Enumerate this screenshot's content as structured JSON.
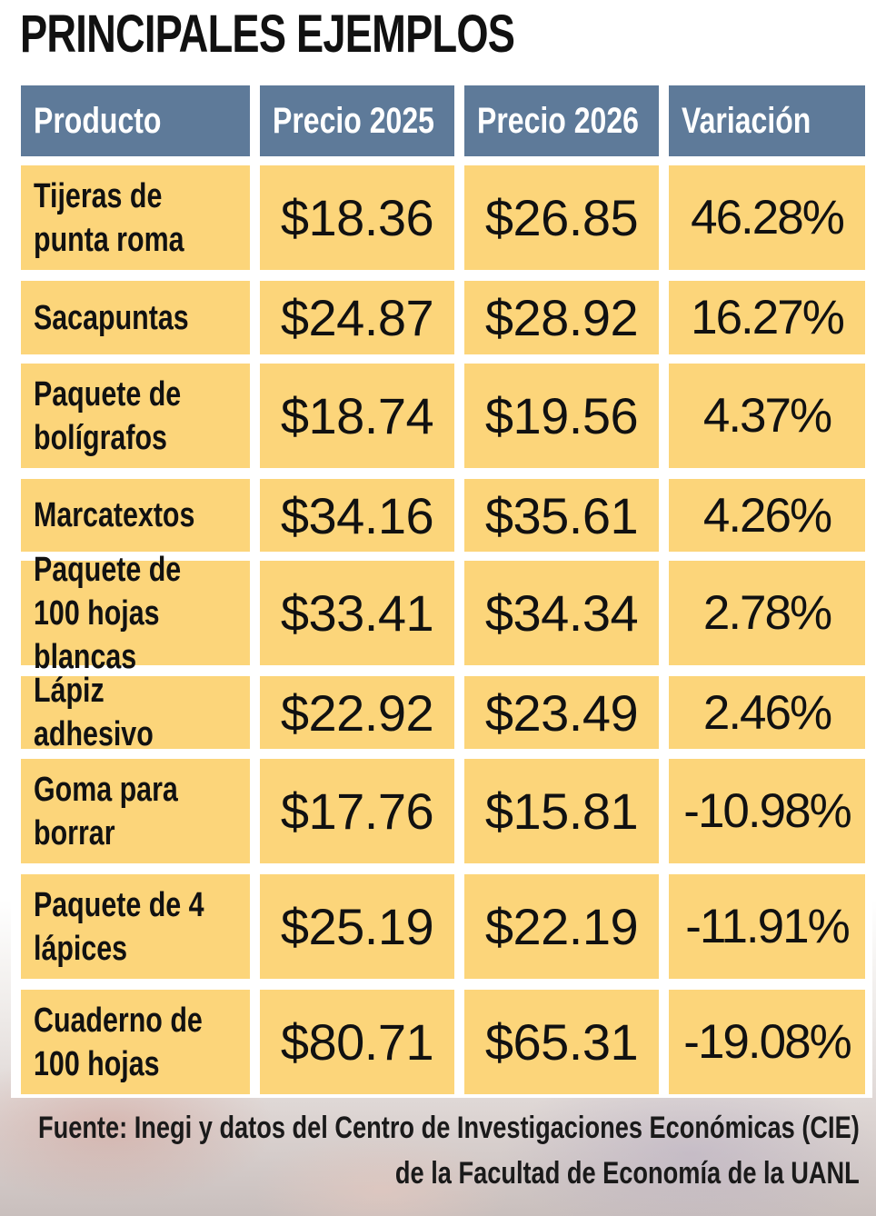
{
  "title": "PRINCIPALES EJEMPLOS",
  "columns": [
    "Producto",
    "Precio 2025",
    "Precio 2026",
    "Variación"
  ],
  "rows": [
    {
      "product": "Tijeras de punta roma",
      "p2025": "$18.36",
      "p2026": "$26.85",
      "variation": "46.28%"
    },
    {
      "product": "Sacapuntas",
      "p2025": "$24.87",
      "p2026": "$28.92",
      "variation": "16.27%"
    },
    {
      "product": "Paquete de bolígrafos",
      "p2025": "$18.74",
      "p2026": "$19.56",
      "variation": "4.37%"
    },
    {
      "product": "Marcatextos",
      "p2025": "$34.16",
      "p2026": "$35.61",
      "variation": "4.26%"
    },
    {
      "product": "Paquete de 100 hojas blancas",
      "p2025": "$33.41",
      "p2026": "$34.34",
      "variation": "2.78%"
    },
    {
      "product": "Lápiz adhesivo",
      "p2025": "$22.92",
      "p2026": "$23.49",
      "variation": "2.46%"
    },
    {
      "product": "Goma para borrar",
      "p2025": "$17.76",
      "p2026": "$15.81",
      "variation": "-10.98%"
    },
    {
      "product": "Paquete de 4 lápices",
      "p2025": "$25.19",
      "p2026": "$22.19",
      "variation": "-11.91%"
    },
    {
      "product": "Cuaderno de 100 hojas",
      "p2025": "$80.71",
      "p2026": "$65.31",
      "variation": "-19.08%"
    }
  ],
  "source": {
    "line1": "Fuente: Inegi y datos del Centro de Investigaciones Económicas (CIE)",
    "line2": "de la Facultad de Economía de la UANL"
  },
  "colors": {
    "header_bg": "#5e7a99",
    "cell_bg": "#fcd57a",
    "text": "#111111"
  }
}
